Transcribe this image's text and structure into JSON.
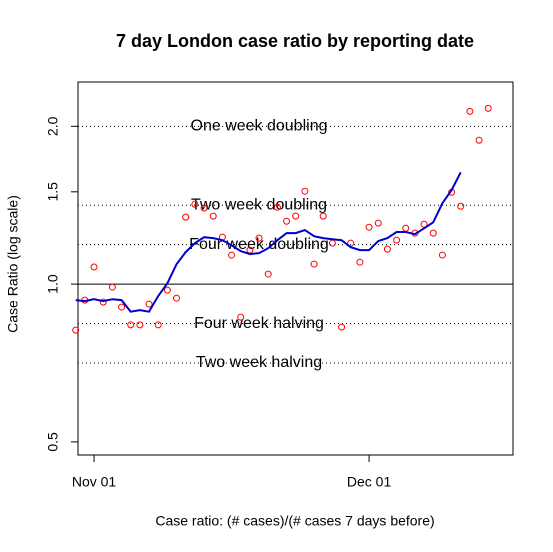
{
  "chart_data": {
    "type": "line",
    "title": "7 day London case ratio by reporting date",
    "xlabel": "Case ratio: (# cases)/(# cases 7 days before)",
    "ylabel": "Case Ratio (log scale)",
    "log_y": true,
    "x": [
      -2,
      -1,
      0,
      1,
      2,
      3,
      4,
      5,
      6,
      7,
      8,
      9,
      10,
      11,
      12,
      13,
      14,
      15,
      16,
      17,
      18,
      19,
      20,
      21,
      22,
      23,
      24,
      25,
      26,
      27,
      28,
      29,
      30,
      31,
      32,
      33,
      34,
      35,
      36,
      37,
      38,
      39,
      40,
      41,
      42,
      43
    ],
    "series": [
      {
        "style": "points",
        "color": "#ff0000",
        "values": [
          0.817,
          0.932,
          1.078,
          0.924,
          0.987,
          0.904,
          0.836,
          0.836,
          0.916,
          0.836,
          0.974,
          0.94,
          1.342,
          1.42,
          1.396,
          1.348,
          1.229,
          1.136,
          0.865,
          1.161,
          1.224,
          1.045,
          1.402,
          1.318,
          1.348,
          1.504,
          1.092,
          1.348,
          1.197,
          0.828,
          1.197,
          1.101,
          1.284,
          1.307,
          1.166,
          1.213,
          1.278,
          1.251,
          1.301,
          1.251,
          1.136,
          1.497,
          1.408,
          2.136,
          1.881,
          2.164
        ]
      },
      {
        "style": "line",
        "color": "#0000cc",
        "values": [
          0.932,
          0.928,
          0.936,
          0.928,
          0.936,
          0.932,
          0.886,
          0.892,
          0.886,
          0.949,
          1.004,
          1.092,
          1.151,
          1.197,
          1.229,
          1.224,
          1.213,
          1.186,
          1.156,
          1.141,
          1.146,
          1.171,
          1.213,
          1.251,
          1.251,
          1.268,
          1.234,
          1.224,
          1.218,
          1.213,
          1.176,
          1.161,
          1.161,
          1.208,
          1.224,
          1.257,
          1.257,
          1.245,
          1.278,
          1.312,
          1.427,
          1.511,
          1.634,
          null,
          null,
          null
        ]
      }
    ],
    "reference_lines": [
      {
        "value": 2,
        "label": "One week doubling",
        "style": "dotted"
      },
      {
        "value": 1.4142,
        "label": "Two week doubling",
        "style": "dotted"
      },
      {
        "value": 1.1892,
        "label": "Four week doubling",
        "style": "dotted"
      },
      {
        "value": 1,
        "style": "solid"
      },
      {
        "value": 0.8409,
        "label": "Four week halving",
        "style": "dotted"
      },
      {
        "value": 0.7071,
        "label": "Two week halving",
        "style": "dotted"
      }
    ],
    "xlim": [
      -1.75,
      45.7
    ],
    "ylim": [
      0.472,
      2.43
    ],
    "xticks": [
      {
        "value": 0,
        "label": "Nov 01"
      },
      {
        "value": 30,
        "label": "Dec 01"
      }
    ],
    "yticks": [
      0.5,
      {
        "value": 1,
        "label": "1.0"
      },
      1.5,
      {
        "value": 2,
        "label": "2.0"
      }
    ]
  }
}
